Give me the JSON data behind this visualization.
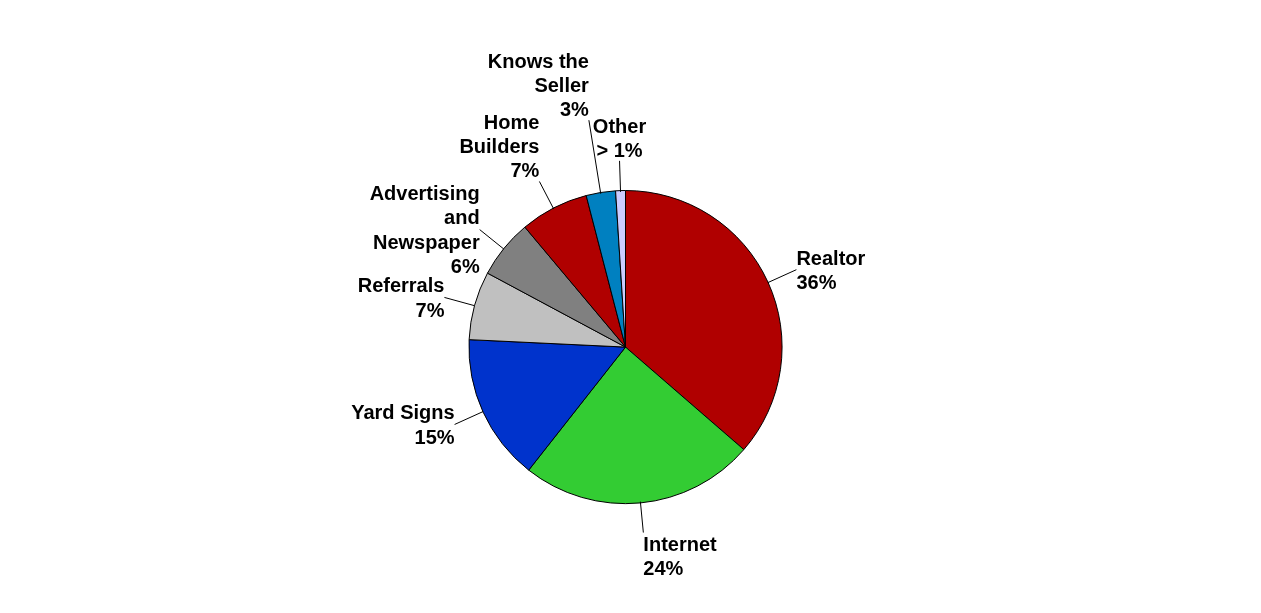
{
  "chart_data": {
    "type": "pie",
    "categories": [
      "Realtor",
      "Internet",
      "Yard Signs",
      "Referrals",
      "Advertising and Newspaper",
      "Home Builders",
      "Knows the Seller",
      "Other"
    ],
    "values": [
      36,
      24,
      15,
      7,
      6,
      7,
      3,
      1
    ],
    "value_labels": [
      "36%",
      "24%",
      "15%",
      "7%",
      "6%",
      "7%",
      "3%",
      "> 1%"
    ],
    "colors": [
      "#b00000",
      "#33cc33",
      "#0033cc",
      "#c0c0c0",
      "#808080",
      "#b00000",
      "#0080c0",
      "#ccccff"
    ]
  }
}
